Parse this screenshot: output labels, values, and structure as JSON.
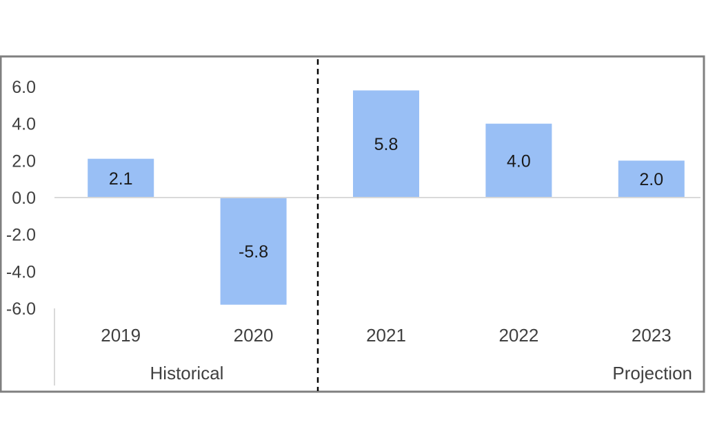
{
  "chart_data": {
    "type": "bar",
    "categories": [
      "2019",
      "2020",
      "2021",
      "2022",
      "2023"
    ],
    "values": [
      2.1,
      -5.8,
      5.8,
      4.0,
      2.0
    ],
    "data_labels": [
      "2.1",
      "-5.8",
      "5.8",
      "4.0",
      "2.0"
    ],
    "y_ticks": [
      "6.0",
      "4.0",
      "2.0",
      "0.0",
      "-2.0",
      "-4.0",
      "-6.0"
    ],
    "y_tick_values": [
      6,
      4,
      2,
      0,
      -2,
      -4,
      -6
    ],
    "ylim": [
      -6,
      6
    ],
    "grid": false,
    "groups": [
      {
        "label": "Historical",
        "categories": [
          "2019",
          "2020"
        ]
      },
      {
        "label": "Projection",
        "categories": [
          "2021",
          "2022",
          "2023"
        ]
      }
    ],
    "colors": {
      "bar": "#99BFF5",
      "axis": "#d9d9d9",
      "frame": "#7f7f7f",
      "text": "#404040",
      "divider": "#000000"
    }
  }
}
